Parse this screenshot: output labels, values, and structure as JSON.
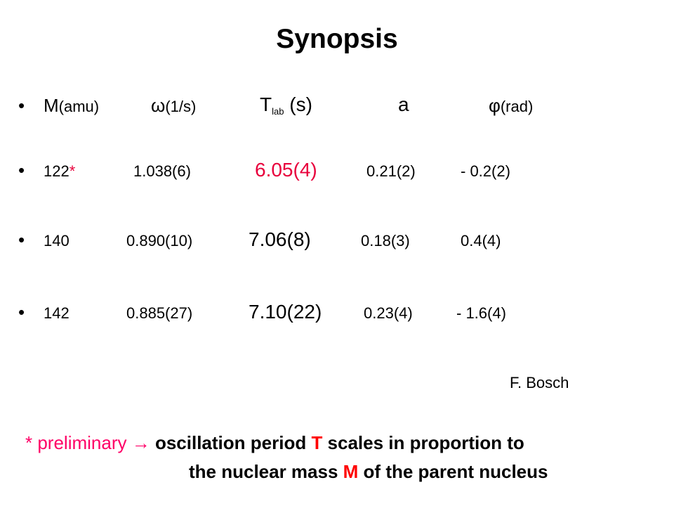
{
  "title": "Synopsis",
  "header": {
    "bullet": "•",
    "m_main": "M",
    "m_unit": "(amu)",
    "omega_main": "ω",
    "omega_unit": "(1/s)",
    "t_main": "T",
    "t_sub": "lab",
    "t_unit": " (s)",
    "a": "a",
    "phi_main": "φ",
    "phi_unit": "(rad)"
  },
  "rows": [
    {
      "bullet": "•",
      "mass": "122",
      "star": "*",
      "omega": "1.038(6)",
      "t": "6.05(4)",
      "a": "0.21(2)",
      "phi": "- 0.2(2)"
    },
    {
      "bullet": "•",
      "mass": "140",
      "omega": "0.890(10)",
      "t": "7.06(8)",
      "a": "0.18(3)",
      "phi": "0.4(4)"
    },
    {
      "bullet": "•",
      "mass": "142",
      "omega": "0.885(27)",
      "t": "7.10(22)",
      "a": "0.23(4)",
      "phi": "- 1.6(4)"
    }
  ],
  "author": "F. Bosch",
  "note": {
    "star_text": "* preliminary →",
    "line1_a": "oscillation period ",
    "line1_T": "T",
    "line1_b": " scales in proportion to",
    "line2_a": "the nuclear mass ",
    "line2_M": "M",
    "line2_b": " of the parent nucleus"
  },
  "colors": {
    "accent_red": "#e8003c",
    "note_pink": "#ff0066",
    "note_red": "#ff0000"
  }
}
